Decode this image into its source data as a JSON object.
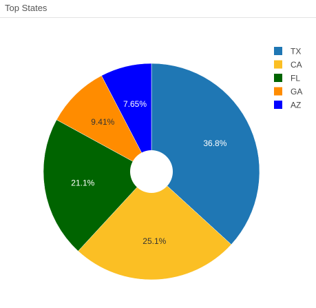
{
  "panel": {
    "title": "Top States"
  },
  "chart_data": {
    "type": "pie",
    "title": "Top States",
    "hole": "small donut hole",
    "legend_position": "top-right",
    "categories": [
      "TX",
      "CA",
      "FL",
      "GA",
      "AZ"
    ],
    "values": [
      36.8,
      25.1,
      21.1,
      9.41,
      7.65
    ],
    "labels": [
      "36.8%",
      "25.1%",
      "21.1%",
      "9.41%",
      "7.65%"
    ],
    "colors": [
      "#1f77b4",
      "#fbbf24",
      "#006400",
      "#ff8c00",
      "#0000ff"
    ],
    "label_colors": [
      "#ffffff",
      "#333333",
      "#ffffff",
      "#333333",
      "#ffffff"
    ],
    "legend_order": [
      "TX",
      "CA",
      "FL",
      "GA",
      "AZ"
    ]
  }
}
